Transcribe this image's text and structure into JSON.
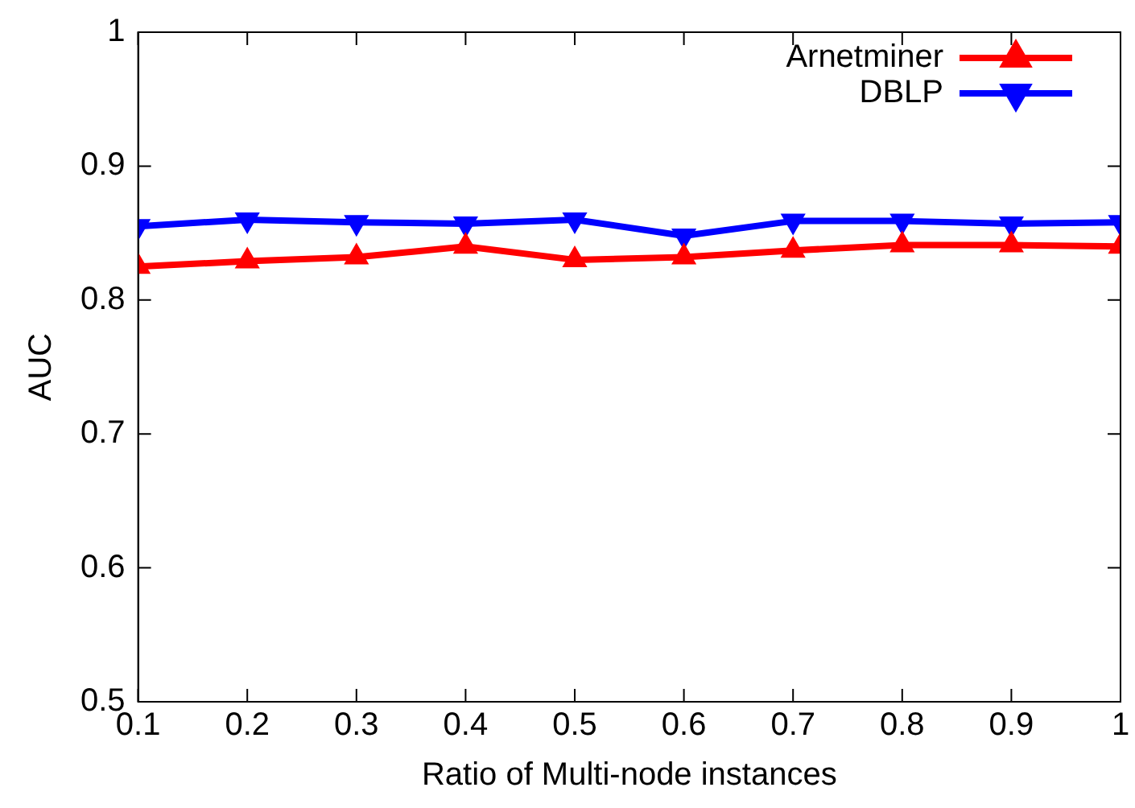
{
  "chart_data": {
    "type": "line",
    "xlabel": "Ratio of Multi-node instances",
    "ylabel": "AUC",
    "x": [
      0.1,
      0.2,
      0.3,
      0.4,
      0.5,
      0.6,
      0.7,
      0.8,
      0.9,
      1
    ],
    "series": [
      {
        "name": "Arnetminer",
        "color": "#ff0000",
        "marker": "triangle",
        "values": [
          0.825,
          0.829,
          0.832,
          0.84,
          0.83,
          0.832,
          0.837,
          0.841,
          0.841,
          0.84
        ]
      },
      {
        "name": "DBLP",
        "color": "#0000ff",
        "marker": "triangle-down",
        "values": [
          0.855,
          0.86,
          0.858,
          0.857,
          0.86,
          0.848,
          0.859,
          0.859,
          0.857,
          0.858
        ]
      }
    ],
    "xlim": [
      0.1,
      1
    ],
    "xticks": [
      0.1,
      0.2,
      0.3,
      0.4,
      0.5,
      0.6,
      0.7,
      0.8,
      0.9,
      1
    ],
    "ylim": [
      0.5,
      1
    ],
    "yticks": [
      0.5,
      0.6,
      0.7,
      0.8,
      0.9,
      1
    ],
    "grid": false,
    "legend": "top right",
    "line_style": "solid"
  }
}
